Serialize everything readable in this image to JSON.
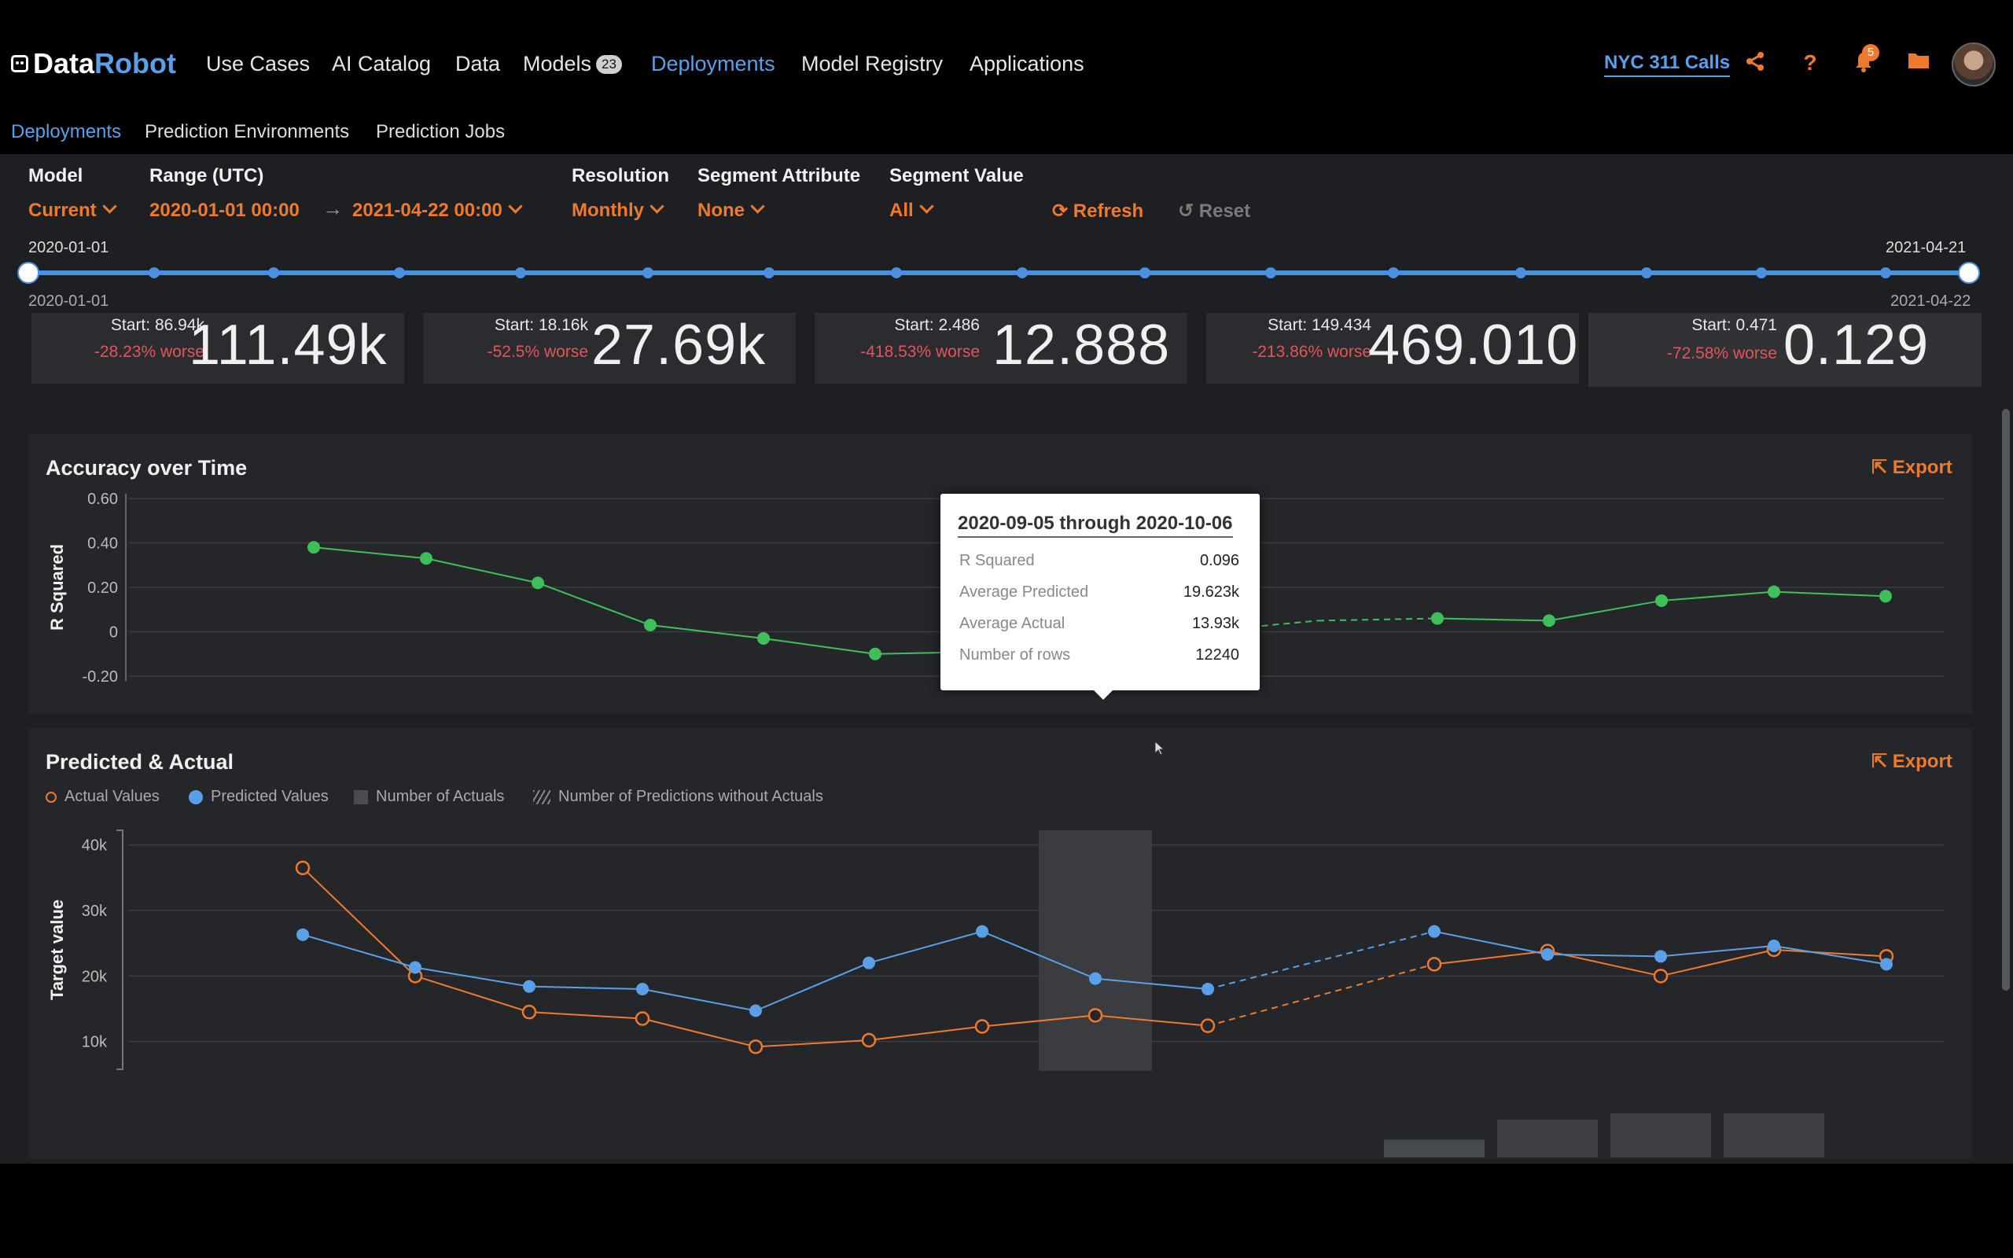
{
  "app": {
    "logo_data": "Data",
    "logo_robot": "Robot",
    "nav": [
      {
        "label": "Use Cases"
      },
      {
        "label": "AI Catalog"
      },
      {
        "label": "Data"
      },
      {
        "label": "Models",
        "badge": "23"
      },
      {
        "label": "Deployments"
      },
      {
        "label": "Model Registry"
      },
      {
        "label": "Applications"
      }
    ],
    "project": "NYC 311 Calls",
    "notifications": "5",
    "icons": [
      "share-icon",
      "help-icon",
      "bell-icon",
      "folder-icon"
    ],
    "accent": "#f07a2c",
    "link_color": "#5aa0e8"
  },
  "subnav": [
    "Deployments",
    "Prediction Environments",
    "Prediction Jobs"
  ],
  "filters": {
    "model_label": "Model",
    "model_value": "Current",
    "range_label": "Range (UTC)",
    "range_start": "2020-01-01  00:00",
    "range_end": "2021-04-22  00:00",
    "resolution_label": "Resolution",
    "resolution_value": "Monthly",
    "segattr_label": "Segment Attribute",
    "segattr_value": "None",
    "segval_label": "Segment Value",
    "segval_value": "All",
    "refresh": "Refresh",
    "reset": "Reset"
  },
  "slider": {
    "top_left": "2020-01-01",
    "top_right": "2021-04-21",
    "bottom_left": "2020-01-01",
    "bottom_right": "2021-04-22"
  },
  "metrics": [
    {
      "start": "Start: 86.94k",
      "change": "-28.23% worse",
      "value": "111.49k"
    },
    {
      "start": "Start: 18.16k",
      "change": "-52.5% worse",
      "value": "27.69k"
    },
    {
      "start": "Start: 2.486",
      "change": "-418.53% worse",
      "value": "12.888"
    },
    {
      "start": "Start: 149.434",
      "change": "-213.86% worse",
      "value": "469.010"
    },
    {
      "start": "Start: 0.471",
      "change": "-72.58% worse",
      "value": "0.129"
    }
  ],
  "accuracy": {
    "title": "Accuracy over Time",
    "export": "Export",
    "tooltip": {
      "title": "2020-09-05 through 2020-10-06",
      "rows": [
        {
          "label": "R Squared",
          "value": "0.096"
        },
        {
          "label": "Average Predicted",
          "value": "19.623k"
        },
        {
          "label": "Average Actual",
          "value": "13.93k"
        },
        {
          "label": "Number of rows",
          "value": "12240"
        }
      ]
    }
  },
  "predicted": {
    "title": "Predicted & Actual",
    "export": "Export",
    "legend": [
      "Actual Values",
      "Predicted Values",
      "Number of Actuals",
      "Number of Predictions without Actuals"
    ]
  },
  "chart_data": [
    {
      "type": "line",
      "title": "Accuracy over Time",
      "ylabel": "R Squared",
      "yticks": [
        "0.60",
        "0.40",
        "0.20",
        "0",
        "-0.20"
      ],
      "ylim": [
        -0.2,
        0.6
      ],
      "color": "#3fbf5a",
      "series": [
        {
          "values": [
            0.38,
            0.33,
            0.22,
            0.03,
            -0.03,
            -0.1,
            -0.09,
            null,
            0.05,
            0.06,
            0.05,
            0.14,
            0.18,
            0.16
          ]
        }
      ],
      "dashed_segments": [
        [
          6,
          8
        ]
      ]
    },
    {
      "type": "line",
      "title": "Predicted & Actual",
      "ylabel": "Target value",
      "yticks": [
        "40k",
        "30k",
        "20k",
        "10k"
      ],
      "ylim": [
        6000,
        42000
      ],
      "series": [
        {
          "name": "Actual Values",
          "color": "#f07a2c",
          "values": [
            36500,
            20000,
            14500,
            13500,
            9200,
            10200,
            12300,
            14000,
            12400,
            null,
            21800,
            23800,
            20000,
            24000,
            23000
          ]
        },
        {
          "name": "Predicted Values",
          "color": "#5aa0e8",
          "values": [
            26300,
            21300,
            18400,
            18000,
            14700,
            22000,
            26800,
            19600,
            18000,
            null,
            26800,
            23300,
            23000,
            24600,
            21800
          ]
        }
      ],
      "dashed_segments": [
        [
          8,
          10
        ]
      ],
      "highlight_index": 7,
      "bars": [
        {
          "index": 10,
          "kind": "predictions-without-actuals",
          "value": 0.08
        },
        {
          "index": 11,
          "kind": "actuals",
          "value": 0.4
        },
        {
          "index": 12,
          "kind": "actuals",
          "value": 0.5
        },
        {
          "index": 13,
          "kind": "actuals",
          "value": 0.5
        }
      ]
    }
  ]
}
